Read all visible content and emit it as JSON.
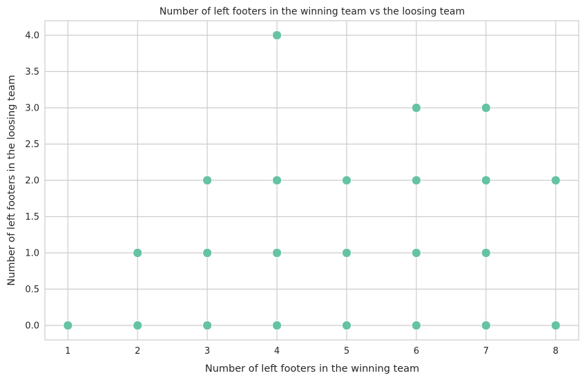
{
  "chart_data": {
    "type": "scatter",
    "title": "Number of left footers in the winning team vs the loosing team",
    "xlabel": "Number of left footers in the winning team",
    "ylabel": "Number of left footers in the loosing team",
    "xlim": [
      0.67,
      8.33
    ],
    "ylim": [
      -0.2,
      4.2
    ],
    "xticks": [
      1,
      2,
      3,
      4,
      5,
      6,
      7,
      8
    ],
    "xtick_labels": [
      "1",
      "2",
      "3",
      "4",
      "5",
      "6",
      "7",
      "8"
    ],
    "yticks": [
      0,
      0.5,
      1,
      1.5,
      2,
      2.5,
      3,
      3.5,
      4
    ],
    "ytick_labels": [
      "0.0",
      "0.5",
      "1.0",
      "1.5",
      "2.0",
      "2.5",
      "3.0",
      "3.5",
      "4.0"
    ],
    "grid": true,
    "point_color": "#66c2a5",
    "x": [
      1,
      2,
      2,
      3,
      3,
      3,
      4,
      4,
      4,
      4,
      5,
      5,
      5,
      6,
      6,
      6,
      6,
      7,
      7,
      7,
      7,
      8,
      8
    ],
    "y": [
      0,
      0,
      1,
      0,
      1,
      2,
      0,
      1,
      2,
      4,
      0,
      1,
      2,
      0,
      1,
      2,
      3,
      0,
      1,
      2,
      3,
      0,
      2
    ]
  }
}
